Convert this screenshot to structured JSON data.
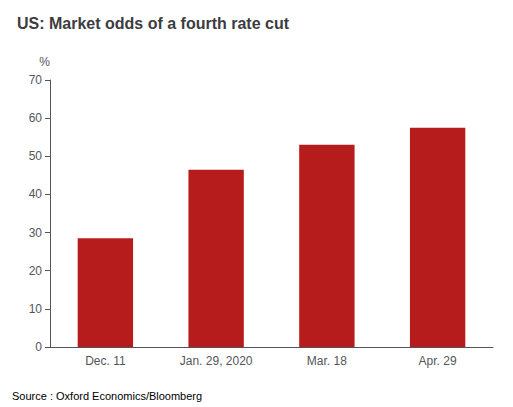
{
  "chart_data": {
    "type": "bar",
    "title": "US: Market odds of a fourth rate cut",
    "categories": [
      "Dec. 11",
      "Jan. 29, 2020",
      "Mar. 18",
      "Apr. 29"
    ],
    "values": [
      28.5,
      46.5,
      53.0,
      57.5
    ],
    "color": "#b71c1c",
    "ylabel": "%",
    "ylim": [
      0,
      70
    ],
    "yticks": [
      0,
      10,
      20,
      30,
      40,
      50,
      60,
      70
    ],
    "annotations": [
      "Source : Oxford Economics/Bloomberg"
    ],
    "grid": false
  }
}
